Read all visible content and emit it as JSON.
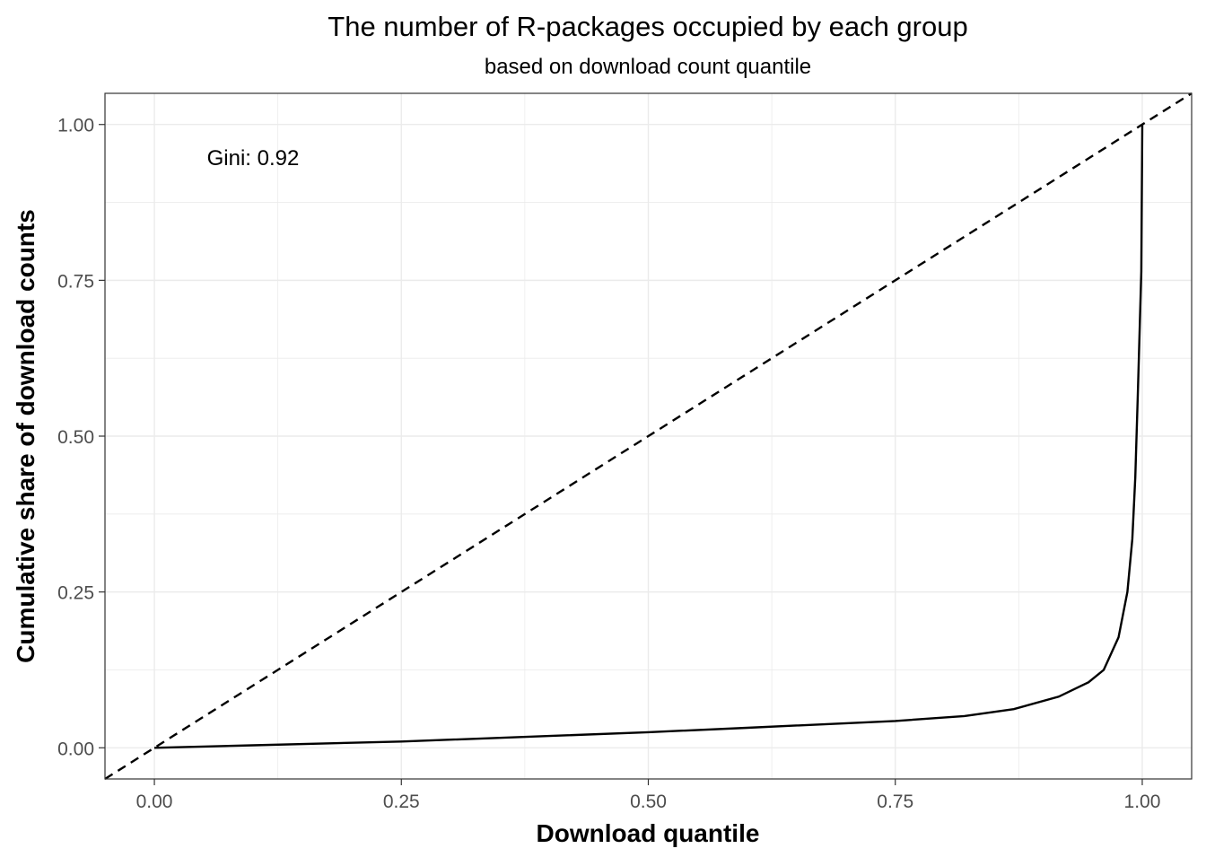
{
  "chart_data": {
    "type": "line",
    "title": "The number of R-packages occupied by each group",
    "subtitle": "based on download count quantile",
    "xlabel": "Download quantile",
    "ylabel": "Cumulative share of download counts",
    "xlim": [
      -0.05,
      1.05
    ],
    "ylim": [
      -0.05,
      1.05
    ],
    "grid": true,
    "x_ticks": [
      0,
      0.25,
      0.5,
      0.75,
      1
    ],
    "x_tick_labels": [
      "0.00",
      "0.25",
      "0.50",
      "0.75",
      "1.00"
    ],
    "y_ticks": [
      0,
      0.25,
      0.5,
      0.75,
      1
    ],
    "y_tick_labels": [
      "0.00",
      "0.25",
      "0.50",
      "0.75",
      "1.00"
    ],
    "annotation": "Gini: 0.92",
    "series": [
      {
        "name": "Lorenz curve",
        "style": "solid",
        "x": [
          0,
          0.1,
          0.25,
          0.4,
          0.5,
          0.6,
          0.75,
          0.82,
          0.87,
          0.9155,
          0.9455,
          0.961,
          0.976,
          0.985,
          0.99,
          0.993,
          0.9955,
          0.999,
          1.0
        ],
        "y": [
          0,
          0.004,
          0.01,
          0.019,
          0.025,
          0.032,
          0.043,
          0.051,
          0.062,
          0.082,
          0.105,
          0.125,
          0.177,
          0.25,
          0.335,
          0.434,
          0.566,
          0.764,
          1.0
        ]
      },
      {
        "name": "Equality line",
        "style": "dashed",
        "x": [
          -0.05,
          1.05
        ],
        "y": [
          -0.05,
          1.05
        ]
      }
    ]
  }
}
